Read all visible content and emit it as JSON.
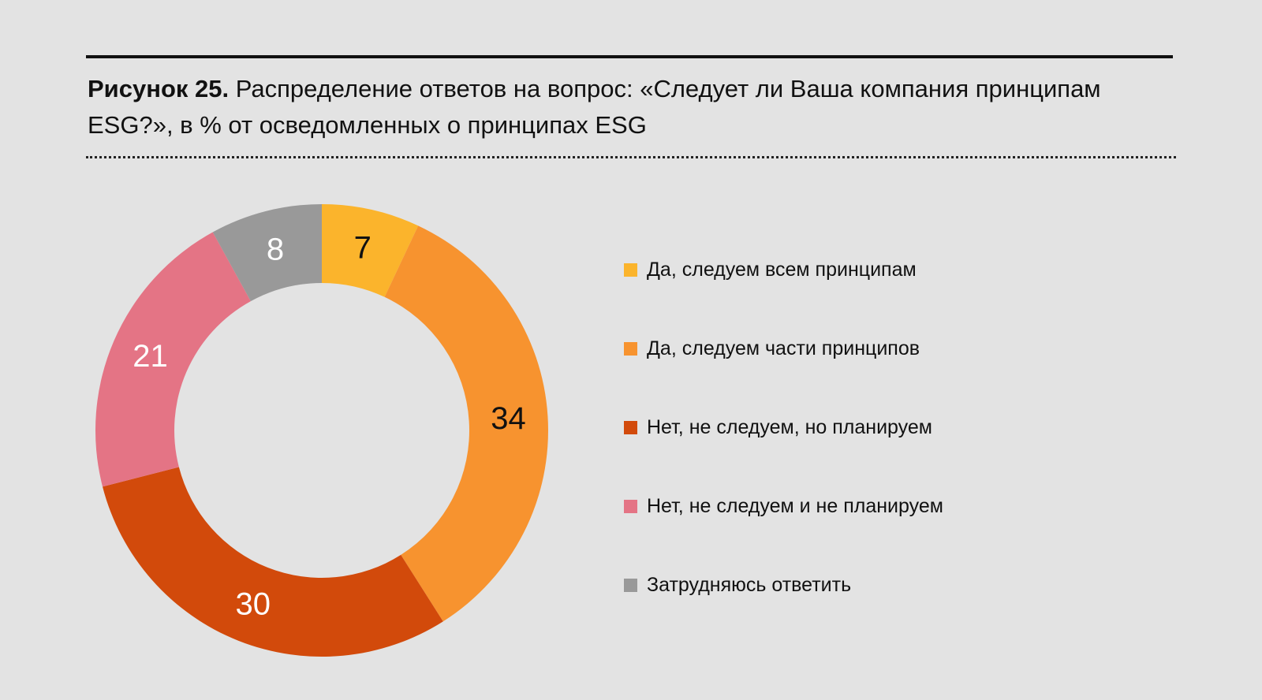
{
  "header": {
    "title_lead": "Рисунок 25.",
    "title_text": "Распределение ответов на вопрос: «Следует ли Ваша компания принципам ESG?», в % от осведомленных о принципах ESG"
  },
  "chart_data": {
    "type": "pie",
    "style": "donut",
    "start": "top",
    "direction": "clockwise",
    "legend_position": "right",
    "slices": [
      {
        "label": "Да, следуем всем принципам",
        "value": 7,
        "color": "#fbb42c",
        "label_color": "#111111"
      },
      {
        "label": "Да, следуем части принципов",
        "value": 34,
        "color": "#f7932f",
        "label_color": "#111111"
      },
      {
        "label": "Нет, не следуем, но планируем",
        "value": 30,
        "color": "#d24a0b",
        "label_color": "#ffffff"
      },
      {
        "label": "Нет, не следуем и не планируем",
        "value": 21,
        "color": "#e47485",
        "label_color": "#ffffff"
      },
      {
        "label": "Затрудняюсь ответить",
        "value": 8,
        "color": "#999999",
        "label_color": "#ffffff"
      }
    ]
  }
}
